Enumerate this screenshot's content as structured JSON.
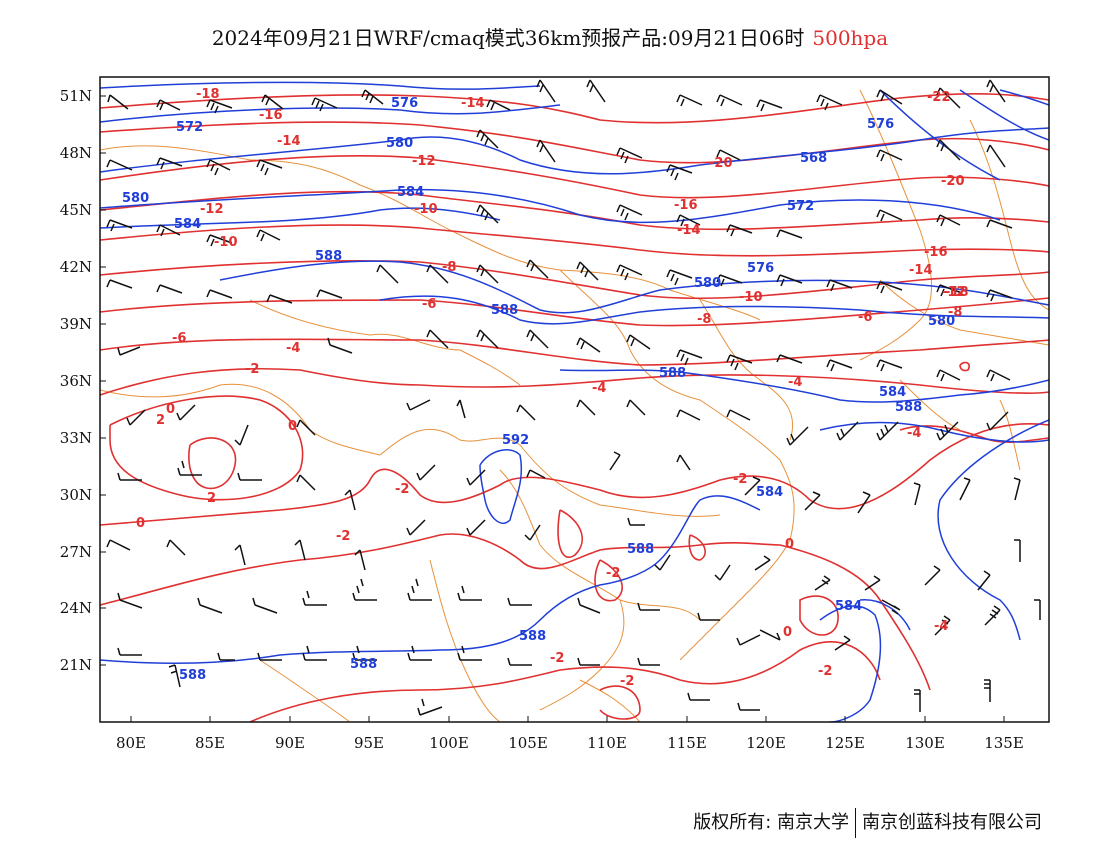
{
  "title": {
    "main": "2024年09月21日WRF/cmaq模式36km预报产品:09月21日06时",
    "level": "500hpa"
  },
  "colors": {
    "temperature": "#e03030",
    "height": "#1f3fd8",
    "border": "#e8913c",
    "wind": "#111111",
    "level_text": "#e03030"
  },
  "axes": {
    "lat_labels": [
      "51N",
      "48N",
      "45N",
      "42N",
      "39N",
      "36N",
      "33N",
      "30N",
      "27N",
      "24N",
      "21N"
    ],
    "lon_labels": [
      "80E",
      "85E",
      "90E",
      "95E",
      "100E",
      "105E",
      "110E",
      "115E",
      "120E",
      "125E",
      "130E",
      "135E"
    ]
  },
  "temperature_labels": [
    "-18",
    "-16",
    "-14",
    "-14",
    "-12",
    "-12",
    "-10",
    "-10",
    "-8",
    "-6",
    "-6",
    "-4",
    "-4",
    "-4",
    "-2",
    "-2",
    "-2",
    "-2",
    "-2",
    "-2",
    "0",
    "0",
    "0",
    "2",
    "2",
    "-20",
    "-20",
    "-22",
    "-16",
    "-14",
    "-16",
    "-14",
    "-12",
    "-10",
    "-8",
    "-8",
    "-6",
    "-4",
    "-2",
    "-2",
    "0",
    "0",
    "-18",
    "-4"
  ],
  "height_labels": [
    "576",
    "572",
    "580",
    "584",
    "580",
    "584",
    "588",
    "588",
    "576",
    "580",
    "584",
    "588",
    "592",
    "588",
    "588",
    "588",
    "588",
    "568",
    "572",
    "576",
    "580",
    "584",
    "588",
    "584"
  ],
  "credit": {
    "owner": "版权所有: 南京大学",
    "company": "南京创蓝科技有限公司"
  }
}
